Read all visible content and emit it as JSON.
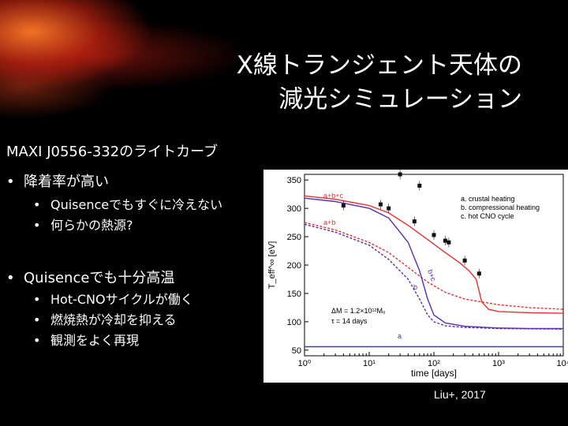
{
  "slide": {
    "title_lines": [
      "X線トランジェント天体の",
      "減光シミュレーション"
    ],
    "subtitle": "MAXI J0556-332のライトカーブ",
    "bullets": [
      {
        "text": "降着率が高い",
        "sub": [
          "Quisenceでもすぐに冷えない",
          "何らかの熱源?"
        ]
      },
      {
        "text": "Quisenceでも十分高温",
        "sub": [
          "Hot-CNOサイクルが働く",
          "燃焼熱が冷却を抑える",
          "観測をよく再現"
        ]
      }
    ],
    "bullet_char": "•",
    "credit": "Liu+, 2017"
  },
  "chart_data": {
    "type": "line",
    "xscale": "log",
    "xlim": [
      1,
      10000
    ],
    "ylim": [
      40,
      360
    ],
    "xlabel": "time [days]",
    "ylabel": "T_eff^∞ [eV]",
    "xticks": [
      "10⁰",
      "10¹",
      "10²",
      "10³",
      "10⁴"
    ],
    "yticks": [
      "50",
      "100",
      "150",
      "200",
      "250",
      "300",
      "350"
    ],
    "legend": [
      "a. crustal heating",
      "b. compressional heating",
      "c. hot CNO cycle"
    ],
    "legend_position": "top-right",
    "annotation": [
      "ΔM = 1.2×10¹²Mᵤ",
      "τ = 14 days"
    ],
    "curve_labels": [
      "a+b+c",
      "a+b",
      "b+c",
      "b",
      "a"
    ],
    "colors": {
      "red": "#e53030",
      "purple": "#5a2db0",
      "blue": "#3040c0",
      "marker": "#111111"
    },
    "series": [
      {
        "name": "a+b+c",
        "style": "solid-red",
        "points": [
          [
            1,
            322
          ],
          [
            3,
            316
          ],
          [
            10,
            305
          ],
          [
            20,
            292
          ],
          [
            40,
            270
          ],
          [
            80,
            245
          ],
          [
            150,
            222
          ],
          [
            250,
            204
          ],
          [
            350,
            190
          ],
          [
            450,
            175
          ],
          [
            550,
            135
          ],
          [
            700,
            122
          ],
          [
            1000,
            118
          ],
          [
            3000,
            116
          ],
          [
            10000,
            115
          ]
        ]
      },
      {
        "name": "a+b",
        "style": "dashed-red",
        "points": [
          [
            1,
            275
          ],
          [
            3,
            262
          ],
          [
            10,
            240
          ],
          [
            20,
            222
          ],
          [
            40,
            196
          ],
          [
            80,
            170
          ],
          [
            150,
            152
          ],
          [
            300,
            140
          ],
          [
            1000,
            130
          ],
          [
            3000,
            125
          ],
          [
            10000,
            122
          ]
        ]
      },
      {
        "name": "b+c",
        "style": "solid-purple",
        "points": [
          [
            1,
            318
          ],
          [
            3,
            312
          ],
          [
            10,
            300
          ],
          [
            20,
            283
          ],
          [
            40,
            240
          ],
          [
            60,
            190
          ],
          [
            80,
            140
          ],
          [
            100,
            112
          ],
          [
            150,
            98
          ],
          [
            300,
            92
          ],
          [
            1000,
            89
          ],
          [
            3000,
            88
          ],
          [
            10000,
            88
          ]
        ]
      },
      {
        "name": "b",
        "style": "dashed-purple",
        "points": [
          [
            1,
            272
          ],
          [
            3,
            258
          ],
          [
            10,
            235
          ],
          [
            20,
            210
          ],
          [
            40,
            175
          ],
          [
            60,
            140
          ],
          [
            80,
            112
          ],
          [
            100,
            100
          ],
          [
            150,
            93
          ],
          [
            300,
            90
          ],
          [
            1000,
            88
          ],
          [
            10000,
            87
          ]
        ]
      },
      {
        "name": "a",
        "style": "solid-blue",
        "points": [
          [
            1,
            56
          ],
          [
            100,
            56
          ],
          [
            10000,
            56
          ]
        ]
      }
    ],
    "observations": [
      [
        4,
        305
      ],
      [
        15,
        307
      ],
      [
        20,
        300
      ],
      [
        50,
        277
      ],
      [
        100,
        253
      ],
      [
        150,
        243
      ],
      [
        170,
        240
      ],
      [
        300,
        208
      ],
      [
        500,
        185
      ],
      [
        30,
        360
      ],
      [
        60,
        340
      ]
    ]
  }
}
